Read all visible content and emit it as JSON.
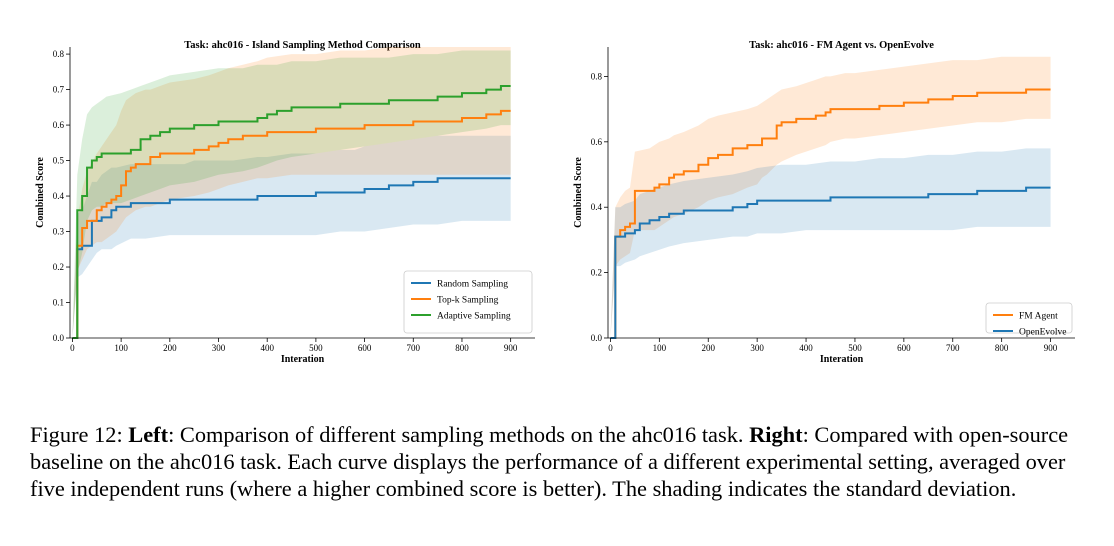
{
  "chart_data": [
    {
      "type": "line",
      "title": "Task: ahc016 - Island Sampling Method Comparison",
      "xlabel": "Interation",
      "ylabel": "Combined Score",
      "xlim": [
        -5,
        950
      ],
      "ylim": [
        0,
        0.82
      ],
      "xticks": [
        0,
        100,
        200,
        300,
        400,
        500,
        600,
        700,
        800,
        900
      ],
      "yticks": [
        0.0,
        0.1,
        0.2,
        0.3,
        0.4,
        0.5,
        0.6,
        0.7,
        0.8
      ],
      "grid": false,
      "legend_position": "lower-right",
      "series": [
        {
          "name": "Random Sampling",
          "color": "#1f77b4",
          "x": [
            0,
            10,
            20,
            40,
            50,
            60,
            80,
            90,
            120,
            150,
            200,
            230,
            250,
            300,
            330,
            380,
            400,
            450,
            480,
            500,
            550,
            580,
            600,
            650,
            700,
            750,
            800,
            850,
            900
          ],
          "y": [
            0.0,
            0.25,
            0.26,
            0.33,
            0.33,
            0.34,
            0.36,
            0.37,
            0.38,
            0.38,
            0.39,
            0.39,
            0.39,
            0.39,
            0.39,
            0.4,
            0.4,
            0.4,
            0.4,
            0.41,
            0.41,
            0.41,
            0.42,
            0.43,
            0.44,
            0.45,
            0.45,
            0.45,
            0.45
          ],
          "upper": [
            0.0,
            0.35,
            0.36,
            0.44,
            0.44,
            0.46,
            0.48,
            0.48,
            0.49,
            0.49,
            0.49,
            0.49,
            0.5,
            0.5,
            0.5,
            0.51,
            0.51,
            0.52,
            0.52,
            0.52,
            0.53,
            0.53,
            0.54,
            0.55,
            0.56,
            0.57,
            0.57,
            0.57,
            0.57
          ],
          "lower": [
            0.0,
            0.17,
            0.18,
            0.22,
            0.24,
            0.25,
            0.25,
            0.26,
            0.28,
            0.28,
            0.29,
            0.29,
            0.29,
            0.29,
            0.29,
            0.29,
            0.29,
            0.29,
            0.29,
            0.29,
            0.3,
            0.3,
            0.3,
            0.31,
            0.32,
            0.32,
            0.33,
            0.33,
            0.33
          ]
        },
        {
          "name": "Top-k Sampling",
          "color": "#ff7f0e",
          "x": [
            0,
            10,
            20,
            30,
            50,
            60,
            70,
            80,
            90,
            100,
            110,
            120,
            130,
            150,
            160,
            180,
            200,
            250,
            280,
            300,
            320,
            350,
            380,
            400,
            450,
            500,
            550,
            600,
            650,
            700,
            750,
            800,
            850,
            880,
            900
          ],
          "y": [
            0.0,
            0.26,
            0.31,
            0.33,
            0.36,
            0.37,
            0.38,
            0.39,
            0.4,
            0.43,
            0.47,
            0.48,
            0.49,
            0.49,
            0.51,
            0.52,
            0.52,
            0.53,
            0.54,
            0.55,
            0.56,
            0.57,
            0.57,
            0.58,
            0.58,
            0.59,
            0.59,
            0.6,
            0.6,
            0.61,
            0.61,
            0.62,
            0.63,
            0.64,
            0.64
          ],
          "upper": [
            0.0,
            0.33,
            0.42,
            0.47,
            0.52,
            0.54,
            0.56,
            0.58,
            0.6,
            0.64,
            0.67,
            0.68,
            0.69,
            0.7,
            0.7,
            0.71,
            0.72,
            0.73,
            0.74,
            0.75,
            0.76,
            0.77,
            0.78,
            0.79,
            0.8,
            0.8,
            0.81,
            0.81,
            0.82,
            0.82,
            0.82,
            0.82,
            0.82,
            0.82,
            0.82
          ],
          "lower": [
            0.0,
            0.19,
            0.22,
            0.25,
            0.27,
            0.27,
            0.28,
            0.29,
            0.3,
            0.32,
            0.34,
            0.35,
            0.36,
            0.37,
            0.37,
            0.38,
            0.39,
            0.4,
            0.41,
            0.42,
            0.43,
            0.44,
            0.45,
            0.45,
            0.46,
            0.46,
            0.46,
            0.46,
            0.46,
            0.46,
            0.46,
            0.46,
            0.46,
            0.46,
            0.46
          ]
        },
        {
          "name": "Adaptive Sampling",
          "color": "#2ca02c",
          "x": [
            0,
            10,
            20,
            30,
            40,
            50,
            60,
            70,
            100,
            120,
            140,
            160,
            180,
            200,
            250,
            300,
            350,
            380,
            400,
            420,
            450,
            500,
            550,
            600,
            650,
            700,
            750,
            800,
            850,
            880,
            900
          ],
          "y": [
            0.0,
            0.36,
            0.4,
            0.48,
            0.5,
            0.51,
            0.52,
            0.52,
            0.52,
            0.53,
            0.56,
            0.57,
            0.58,
            0.59,
            0.6,
            0.61,
            0.61,
            0.62,
            0.63,
            0.64,
            0.65,
            0.65,
            0.66,
            0.66,
            0.67,
            0.67,
            0.68,
            0.69,
            0.7,
            0.71,
            0.71
          ],
          "upper": [
            0.0,
            0.46,
            0.56,
            0.63,
            0.65,
            0.66,
            0.67,
            0.68,
            0.69,
            0.7,
            0.71,
            0.72,
            0.73,
            0.74,
            0.75,
            0.76,
            0.76,
            0.77,
            0.77,
            0.77,
            0.78,
            0.78,
            0.79,
            0.79,
            0.79,
            0.8,
            0.8,
            0.81,
            0.81,
            0.81,
            0.81
          ],
          "lower": [
            0.0,
            0.18,
            0.24,
            0.33,
            0.36,
            0.37,
            0.37,
            0.38,
            0.38,
            0.39,
            0.4,
            0.41,
            0.42,
            0.43,
            0.44,
            0.46,
            0.47,
            0.48,
            0.49,
            0.5,
            0.51,
            0.52,
            0.53,
            0.54,
            0.55,
            0.56,
            0.57,
            0.58,
            0.59,
            0.6,
            0.6
          ]
        }
      ]
    },
    {
      "type": "line",
      "title": "Task: ahc016 - FM Agent vs. OpenEvolve",
      "xlabel": "Interation",
      "ylabel": "Combined Score",
      "xlim": [
        -5,
        950
      ],
      "ylim": [
        0,
        0.89
      ],
      "xticks": [
        0,
        100,
        200,
        300,
        400,
        500,
        600,
        700,
        800,
        900
      ],
      "yticks": [
        0.0,
        0.2,
        0.4,
        0.6,
        0.8
      ],
      "grid": false,
      "legend_position": "lower-right",
      "series": [
        {
          "name": "FM Agent",
          "color": "#ff7f0e",
          "x": [
            0,
            10,
            20,
            30,
            40,
            50,
            80,
            90,
            100,
            120,
            130,
            150,
            180,
            200,
            220,
            250,
            280,
            300,
            310,
            320,
            340,
            350,
            380,
            400,
            420,
            440,
            450,
            480,
            500,
            550,
            600,
            650,
            700,
            750,
            800,
            850,
            900
          ],
          "y": [
            0.0,
            0.31,
            0.33,
            0.34,
            0.35,
            0.45,
            0.45,
            0.46,
            0.47,
            0.49,
            0.5,
            0.51,
            0.53,
            0.55,
            0.56,
            0.58,
            0.59,
            0.59,
            0.61,
            0.61,
            0.65,
            0.66,
            0.67,
            0.67,
            0.68,
            0.69,
            0.7,
            0.7,
            0.7,
            0.71,
            0.72,
            0.73,
            0.74,
            0.75,
            0.75,
            0.76,
            0.76
          ],
          "upper": [
            0.0,
            0.4,
            0.43,
            0.45,
            0.46,
            0.57,
            0.58,
            0.59,
            0.6,
            0.61,
            0.62,
            0.63,
            0.65,
            0.67,
            0.68,
            0.69,
            0.7,
            0.71,
            0.72,
            0.73,
            0.75,
            0.76,
            0.77,
            0.78,
            0.79,
            0.8,
            0.8,
            0.81,
            0.81,
            0.82,
            0.83,
            0.84,
            0.85,
            0.85,
            0.86,
            0.86,
            0.86
          ],
          "lower": [
            0.0,
            0.22,
            0.24,
            0.25,
            0.26,
            0.33,
            0.33,
            0.33,
            0.34,
            0.36,
            0.37,
            0.38,
            0.4,
            0.42,
            0.43,
            0.44,
            0.46,
            0.47,
            0.49,
            0.5,
            0.53,
            0.54,
            0.56,
            0.57,
            0.58,
            0.59,
            0.6,
            0.61,
            0.61,
            0.62,
            0.63,
            0.64,
            0.65,
            0.66,
            0.66,
            0.67,
            0.67
          ]
        },
        {
          "name": "OpenEvolve",
          "color": "#1f77b4",
          "x": [
            0,
            10,
            20,
            30,
            50,
            60,
            80,
            100,
            120,
            150,
            200,
            250,
            280,
            300,
            350,
            400,
            450,
            500,
            550,
            600,
            650,
            700,
            750,
            800,
            850,
            900
          ],
          "y": [
            0.0,
            0.31,
            0.31,
            0.32,
            0.33,
            0.35,
            0.36,
            0.37,
            0.38,
            0.39,
            0.39,
            0.4,
            0.41,
            0.42,
            0.42,
            0.42,
            0.43,
            0.43,
            0.43,
            0.43,
            0.44,
            0.44,
            0.45,
            0.45,
            0.46,
            0.46
          ],
          "upper": [
            0.0,
            0.4,
            0.4,
            0.41,
            0.42,
            0.44,
            0.45,
            0.46,
            0.47,
            0.48,
            0.49,
            0.5,
            0.51,
            0.52,
            0.53,
            0.53,
            0.54,
            0.54,
            0.55,
            0.55,
            0.56,
            0.56,
            0.57,
            0.57,
            0.58,
            0.58
          ],
          "lower": [
            0.0,
            0.22,
            0.22,
            0.23,
            0.24,
            0.25,
            0.26,
            0.27,
            0.28,
            0.29,
            0.3,
            0.31,
            0.31,
            0.32,
            0.32,
            0.33,
            0.33,
            0.33,
            0.33,
            0.33,
            0.33,
            0.33,
            0.34,
            0.34,
            0.34,
            0.34
          ]
        }
      ]
    }
  ],
  "caption": {
    "prefix": "Figure 12: ",
    "left_label": "Left",
    "left_text": ": Comparison of different sampling methods on the ahc016 task. ",
    "right_label": "Right",
    "right_text": ": Compared with open-source baseline on the ahc016 task. Each curve displays the performance of a different experimental setting, averaged over five independent runs (where a higher combined score is better). The shading indicates the standard deviation."
  }
}
